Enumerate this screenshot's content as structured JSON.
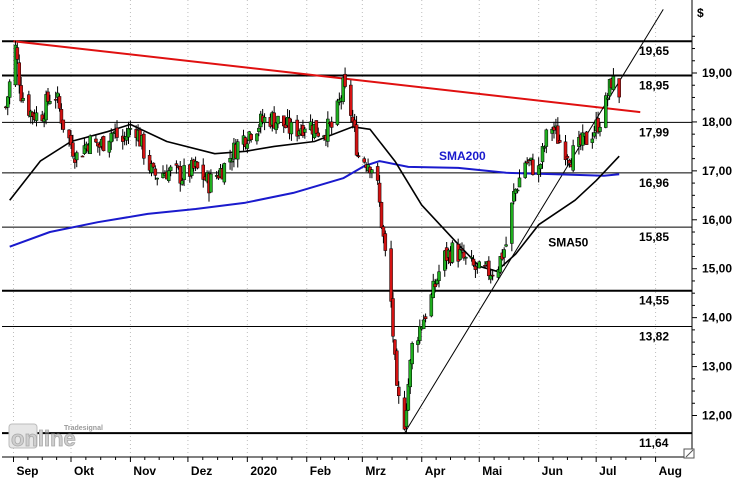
{
  "chart_data": {
    "type": "candlestick",
    "unit": "$",
    "ylim": [
      11.4,
      20.1
    ],
    "y_ticks": [
      12,
      13,
      14,
      15,
      16,
      17,
      18,
      19
    ],
    "y_tick_labels": [
      "12,00",
      "13,00",
      "14,00",
      "15,00",
      "16,00",
      "17,00",
      "18,00",
      "19,00"
    ],
    "x_labels": [
      "Sep",
      "Okt",
      "Nov",
      "Dez",
      "2020",
      "Feb",
      "Mrz",
      "Apr",
      "Mai",
      "Jun",
      "Jul",
      "Aug"
    ],
    "horizontal_levels": [
      {
        "value": 19.65,
        "label": "19,65"
      },
      {
        "value": 18.95,
        "label": "18,95"
      },
      {
        "value": 17.99,
        "label": "17,99"
      },
      {
        "value": 16.96,
        "label": "16,96"
      },
      {
        "value": 15.85,
        "label": "15,85"
      },
      {
        "value": 14.55,
        "label": "14,55"
      },
      {
        "value": 13.82,
        "label": "13,82"
      },
      {
        "value": 11.64,
        "label": "11,64"
      }
    ],
    "resistance_trendline": {
      "from": {
        "date": "2019-09-01",
        "value": 19.65
      },
      "to": {
        "date": "2020-07-24",
        "value": 18.2
      }
    },
    "support_trendline": {
      "from": {
        "date": "2020-03-23",
        "value": 11.64
      },
      "to": {
        "date": "2020-08-05",
        "value": 20.3
      }
    },
    "sma200": {
      "name": "SMA200",
      "points": [
        [
          "2019-08-30",
          15.45
        ],
        [
          "2019-09-20",
          15.75
        ],
        [
          "2019-10-15",
          15.95
        ],
        [
          "2019-11-10",
          16.12
        ],
        [
          "2019-12-05",
          16.22
        ],
        [
          "2019-12-31",
          16.35
        ],
        [
          "2020-01-25",
          16.55
        ],
        [
          "2020-02-20",
          16.85
        ],
        [
          "2020-03-02",
          17.1
        ],
        [
          "2020-03-10",
          17.2
        ],
        [
          "2020-03-25",
          17.08
        ],
        [
          "2020-04-20",
          17.06
        ],
        [
          "2020-05-15",
          16.96
        ],
        [
          "2020-06-10",
          16.93
        ],
        [
          "2020-07-05",
          16.9
        ],
        [
          "2020-07-13",
          16.93
        ]
      ]
    },
    "sma50": {
      "name": "SMA50",
      "points": [
        [
          "2019-08-30",
          16.4
        ],
        [
          "2019-09-15",
          17.2
        ],
        [
          "2019-10-01",
          17.6
        ],
        [
          "2019-10-20",
          17.8
        ],
        [
          "2019-11-01",
          17.95
        ],
        [
          "2019-11-20",
          17.6
        ],
        [
          "2019-12-15",
          17.35
        ],
        [
          "2019-12-31",
          17.4
        ],
        [
          "2020-01-15",
          17.5
        ],
        [
          "2020-02-05",
          17.6
        ],
        [
          "2020-02-25",
          17.9
        ],
        [
          "2020-03-05",
          17.85
        ],
        [
          "2020-03-18",
          17.2
        ],
        [
          "2020-04-01",
          16.3
        ],
        [
          "2020-04-20",
          15.5
        ],
        [
          "2020-05-01",
          15.05
        ],
        [
          "2020-05-10",
          14.95
        ],
        [
          "2020-05-20",
          15.3
        ],
        [
          "2020-06-01",
          15.9
        ],
        [
          "2020-06-20",
          16.4
        ],
        [
          "2020-07-01",
          16.8
        ],
        [
          "2020-07-13",
          17.3
        ]
      ]
    },
    "price_path": [
      [
        "2019-08-28",
        18.3
      ],
      [
        "2019-09-02",
        19.5
      ],
      [
        "2019-09-05",
        18.6
      ],
      [
        "2019-09-10",
        18.2
      ],
      [
        "2019-09-15",
        18.1
      ],
      [
        "2019-09-22",
        18.7
      ],
      [
        "2019-09-28",
        17.8
      ],
      [
        "2019-10-04",
        17.3
      ],
      [
        "2019-10-10",
        17.6
      ],
      [
        "2019-10-16",
        17.5
      ],
      [
        "2019-10-22",
        17.8
      ],
      [
        "2019-10-28",
        17.6
      ],
      [
        "2019-11-03",
        18.0
      ],
      [
        "2019-11-08",
        17.4
      ],
      [
        "2019-11-13",
        16.9
      ],
      [
        "2019-11-20",
        17.0
      ],
      [
        "2019-11-28",
        16.9
      ],
      [
        "2019-12-05",
        17.05
      ],
      [
        "2019-12-12",
        16.75
      ],
      [
        "2019-12-20",
        17.1
      ],
      [
        "2019-12-28",
        17.6
      ],
      [
        "2020-01-05",
        17.9
      ],
      [
        "2020-01-12",
        18.1
      ],
      [
        "2020-01-18",
        18.0
      ],
      [
        "2020-01-25",
        17.8
      ],
      [
        "2020-02-01",
        18.0
      ],
      [
        "2020-02-08",
        17.8
      ],
      [
        "2020-02-15",
        17.9
      ],
      [
        "2020-02-20",
        18.7
      ],
      [
        "2020-02-24",
        18.2
      ],
      [
        "2020-02-28",
        17.3
      ],
      [
        "2020-03-04",
        17.2
      ],
      [
        "2020-03-08",
        17.0
      ],
      [
        "2020-03-12",
        15.6
      ],
      [
        "2020-03-16",
        14.3
      ],
      [
        "2020-03-19",
        12.4
      ],
      [
        "2020-03-23",
        11.9
      ],
      [
        "2020-03-27",
        13.4
      ],
      [
        "2020-04-01",
        13.9
      ],
      [
        "2020-04-06",
        14.4
      ],
      [
        "2020-04-12",
        15.2
      ],
      [
        "2020-04-18",
        15.4
      ],
      [
        "2020-04-25",
        15.1
      ],
      [
        "2020-05-02",
        14.9
      ],
      [
        "2020-05-10",
        15.0
      ],
      [
        "2020-05-15",
        15.5
      ],
      [
        "2020-05-19",
        16.5
      ],
      [
        "2020-05-25",
        17.2
      ],
      [
        "2020-06-01",
        17.0
      ],
      [
        "2020-06-07",
        18.0
      ],
      [
        "2020-06-12",
        17.6
      ],
      [
        "2020-06-18",
        17.3
      ],
      [
        "2020-06-25",
        17.6
      ],
      [
        "2020-07-01",
        17.9
      ],
      [
        "2020-07-05",
        18.2
      ],
      [
        "2020-07-09",
        18.85
      ],
      [
        "2020-07-13",
        18.6
      ]
    ],
    "annotations": [
      {
        "text": "SMA200",
        "date": "2020-04-10",
        "value": 17.22,
        "color": "#1a1acd"
      },
      {
        "text": "SMA50",
        "date": "2020-06-06",
        "value": 15.45,
        "color": "#000000"
      }
    ]
  },
  "colors": {
    "sma200": "#1a1acd",
    "sma50": "#000000",
    "resistance": "#e01010",
    "up_candle": "#1fae1f",
    "down_candle": "#d41212",
    "grid": "#bdbdbd"
  },
  "watermark": {
    "brand_small": "Tradesignal",
    "brand_main": "online"
  }
}
